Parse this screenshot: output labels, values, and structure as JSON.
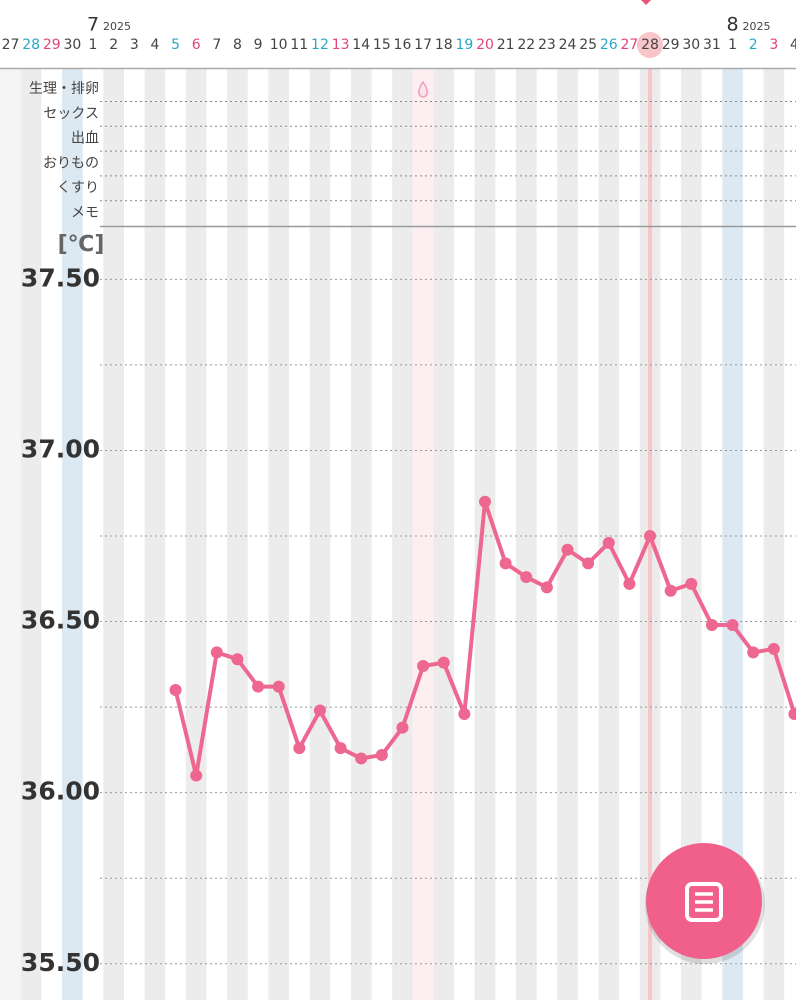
{
  "header": {
    "rows": [
      "生理・排卵",
      "セックス",
      "出血",
      "おりもの",
      "くすり",
      "メモ"
    ]
  },
  "chart_data": {
    "type": "line",
    "categories": [
      "27",
      "28",
      "29",
      "30",
      "1",
      "2",
      "3",
      "4",
      "5",
      "6",
      "7",
      "8",
      "9",
      "10",
      "11",
      "12",
      "13",
      "14",
      "15",
      "16",
      "17",
      "18",
      "19",
      "20",
      "21",
      "22",
      "23",
      "24",
      "25",
      "26",
      "27",
      "28",
      "29",
      "30",
      "31",
      "1",
      "2",
      "3",
      "4"
    ],
    "category_colors": [
      "#444",
      "#2aa7c6",
      "#e0457b",
      "#444",
      "#444",
      "#444",
      "#444",
      "#444",
      "#2aa7c6",
      "#e0457b",
      "#444",
      "#444",
      "#444",
      "#444",
      "#444",
      "#2aa7c6",
      "#e0457b",
      "#444",
      "#444",
      "#444",
      "#444",
      "#444",
      "#2aa7c6",
      "#e0457b",
      "#444",
      "#444",
      "#444",
      "#444",
      "#444",
      "#2aa7c6",
      "#e0457b",
      "#444",
      "#444",
      "#444",
      "#444",
      "#444",
      "#2aa7c6",
      "#e0457b",
      "#444"
    ],
    "months": [
      {
        "label": "7",
        "year": "2025"
      },
      {
        "label": "8",
        "year": "2025"
      }
    ],
    "y_label": "[℃]",
    "series": [
      {
        "color": "#ee6790",
        "values": [
          null,
          null,
          null,
          null,
          null,
          null,
          null,
          null,
          36.3,
          36.05,
          36.41,
          36.39,
          36.31,
          36.31,
          36.13,
          36.24,
          36.13,
          36.1,
          36.11,
          36.19,
          36.37,
          36.38,
          36.23,
          36.85,
          36.67,
          36.63,
          36.6,
          36.71,
          36.67,
          36.73,
          36.61,
          36.75,
          36.59,
          36.61,
          36.49,
          36.49,
          36.41,
          36.42,
          36.23
        ]
      }
    ],
    "ylim": [
      35.4,
      37.65
    ],
    "yticks": [
      {
        "value": 35.5,
        "label": "35.50"
      },
      {
        "value": 36,
        "label": "36.00"
      },
      {
        "value": 36.5,
        "label": "36.50"
      },
      {
        "value": 37,
        "label": "37.00"
      },
      {
        "value": 37.5,
        "label": "37.50"
      }
    ],
    "minor_yticks": [
      35.75,
      36.25,
      36.75,
      37.25
    ],
    "grid": true
  }
}
